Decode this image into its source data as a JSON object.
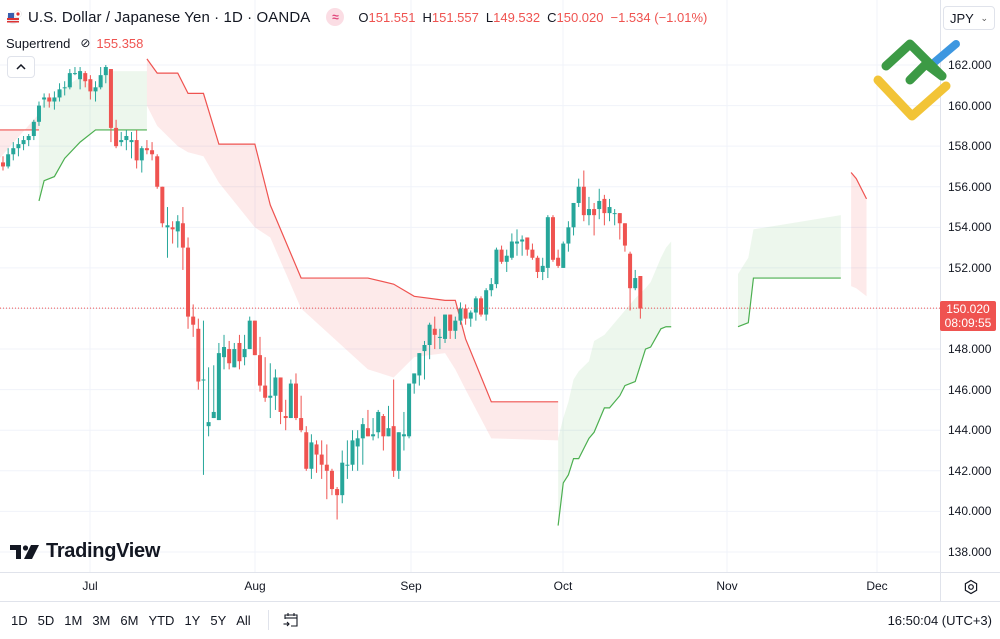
{
  "header": {
    "symbol_title": "U.S. Dollar / Japanese Yen · 1D · OANDA",
    "compare_icon": "approx-icon",
    "ohlc": {
      "open_key": "O",
      "open": "151.551",
      "high_key": "H",
      "high": "151.557",
      "low_key": "L",
      "low": "149.532",
      "close_key": "C",
      "close": "150.020",
      "change": "−1.534 (−1.01%)"
    }
  },
  "indicator": {
    "name": "Supertrend",
    "visibility_icon": "hidden-eye-icon",
    "value": "155.358"
  },
  "collapse_button": {
    "icon": "chevron-up-icon"
  },
  "currency_select": {
    "value": "JPY"
  },
  "price_axis": {
    "labels": [
      "162.000",
      "160.000",
      "158.000",
      "156.000",
      "154.000",
      "152.000",
      "148.000",
      "146.000",
      "144.000",
      "142.000",
      "140.000",
      "138.000"
    ],
    "last_price": "150.020",
    "countdown": "08:09:55"
  },
  "time_axis": {
    "labels": [
      "Jul",
      "Aug",
      "Sep",
      "Oct",
      "Nov",
      "Dec"
    ]
  },
  "watermark": {
    "text": "TradingView"
  },
  "bottom_bar": {
    "ranges": [
      "1D",
      "5D",
      "1M",
      "3M",
      "6M",
      "YTD",
      "1Y",
      "5Y",
      "All"
    ],
    "clock": "16:50:04 (UTC+3)"
  },
  "colors": {
    "up": "#26a69a",
    "down": "#ef5350",
    "supertrend_up": "#4caf50",
    "supertrend_down": "#ef5350",
    "fill_up": "rgba(76,175,80,0.10)",
    "fill_down": "rgba(239,83,80,0.12)",
    "grid": "#f0f3fa"
  },
  "chart_data": {
    "type": "candlestick",
    "title": "U.S. Dollar / Japanese Yen · 1D · OANDA",
    "xlabel": "",
    "ylabel": "JPY",
    "ylim": [
      137.5,
      163
    ],
    "grid": true,
    "x_ticks": [
      "Jul",
      "Aug",
      "Sep",
      "Oct",
      "Nov",
      "Dec"
    ],
    "y_ticks": [
      138,
      140,
      142,
      144,
      146,
      148,
      150,
      152,
      154,
      156,
      158,
      160,
      162
    ],
    "last": {
      "open": 151.551,
      "high": 151.557,
      "low": 149.532,
      "close": 150.02,
      "change": -1.534,
      "change_pct": -1.01
    },
    "indicator": {
      "name": "Supertrend",
      "value": 155.358
    },
    "candles": [
      [
        157.2,
        157.5,
        156.8,
        157.0
      ],
      [
        157.0,
        157.9,
        156.9,
        157.6
      ],
      [
        157.6,
        158.2,
        157.3,
        157.9
      ],
      [
        157.9,
        158.4,
        157.5,
        158.1
      ],
      [
        158.1,
        158.5,
        157.8,
        158.3
      ],
      [
        158.3,
        158.6,
        158.0,
        158.5
      ],
      [
        158.5,
        159.3,
        158.3,
        159.2
      ],
      [
        159.2,
        160.2,
        159.0,
        160.0
      ],
      [
        160.3,
        160.6,
        159.9,
        160.4
      ],
      [
        160.4,
        160.6,
        159.9,
        160.2
      ],
      [
        160.2,
        160.7,
        159.8,
        160.4
      ],
      [
        160.4,
        161.1,
        160.2,
        160.8
      ],
      [
        160.9,
        161.2,
        160.5,
        160.9
      ],
      [
        160.9,
        161.8,
        160.8,
        161.6
      ],
      [
        161.6,
        161.9,
        161.5,
        161.6
      ],
      [
        161.3,
        161.9,
        160.8,
        161.7
      ],
      [
        161.6,
        161.7,
        160.9,
        161.2
      ],
      [
        161.3,
        161.5,
        160.3,
        160.7
      ],
      [
        160.7,
        161.2,
        160.2,
        160.9
      ],
      [
        160.9,
        161.9,
        160.8,
        161.5
      ],
      [
        161.5,
        162.0,
        161.1,
        161.9
      ],
      [
        161.8,
        161.8,
        158.2,
        158.9
      ],
      [
        158.9,
        159.3,
        157.9,
        158.0
      ],
      [
        158.2,
        158.7,
        158.0,
        158.3
      ],
      [
        158.3,
        158.8,
        157.8,
        158.5
      ],
      [
        158.2,
        158.7,
        157.4,
        158.3
      ],
      [
        158.3,
        158.8,
        156.9,
        157.3
      ],
      [
        157.3,
        158.0,
        156.7,
        157.9
      ],
      [
        157.9,
        158.3,
        157.6,
        157.8
      ],
      [
        157.8,
        158.2,
        157.3,
        157.6
      ],
      [
        157.5,
        157.6,
        155.9,
        156.0
      ],
      [
        156.0,
        156.0,
        154.0,
        154.2
      ],
      [
        154.0,
        155.0,
        152.5,
        154.1
      ],
      [
        154.0,
        154.3,
        153.2,
        153.9
      ],
      [
        153.8,
        154.6,
        153.0,
        154.3
      ],
      [
        154.2,
        155.0,
        151.9,
        153.0
      ],
      [
        153.0,
        153.5,
        149.0,
        149.6
      ],
      [
        149.6,
        150.2,
        148.6,
        149.2
      ],
      [
        149.0,
        149.5,
        146.0,
        146.4
      ],
      [
        146.5,
        149.4,
        141.8,
        146.5
      ],
      [
        144.2,
        147.1,
        143.7,
        144.4
      ],
      [
        144.6,
        147.2,
        144.8,
        144.9
      ],
      [
        144.5,
        148.3,
        145.8,
        147.8
      ],
      [
        147.6,
        148.7,
        147.0,
        148.1
      ],
      [
        148.0,
        148.4,
        147.0,
        147.3
      ],
      [
        147.1,
        148.3,
        147.2,
        148.0
      ],
      [
        148.3,
        148.7,
        147.0,
        147.4
      ],
      [
        147.6,
        148.7,
        147.2,
        148.0
      ],
      [
        148.0,
        149.6,
        148.4,
        149.4
      ],
      [
        149.4,
        149.4,
        147.8,
        147.7
      ],
      [
        147.7,
        148.6,
        145.9,
        146.2
      ],
      [
        146.2,
        147.6,
        145.4,
        145.6
      ],
      [
        145.6,
        147.3,
        144.6,
        145.7
      ],
      [
        145.7,
        147.0,
        145.0,
        146.6
      ],
      [
        146.6,
        146.5,
        144.3,
        144.9
      ],
      [
        144.7,
        145.5,
        144.0,
        144.6
      ],
      [
        144.6,
        146.5,
        145.0,
        146.3
      ],
      [
        146.3,
        146.8,
        144.5,
        144.6
      ],
      [
        144.6,
        145.7,
        143.9,
        144.0
      ],
      [
        143.9,
        144.2,
        142.0,
        142.1
      ],
      [
        142.1,
        143.8,
        141.6,
        143.4
      ],
      [
        143.3,
        143.5,
        141.9,
        142.8
      ],
      [
        142.8,
        143.5,
        141.6,
        142.3
      ],
      [
        142.3,
        143.3,
        140.6,
        142.0
      ],
      [
        142.0,
        142.1,
        140.8,
        141.1
      ],
      [
        141.1,
        141.2,
        139.6,
        140.8
      ],
      [
        140.8,
        143.0,
        140.4,
        142.4
      ],
      [
        142.3,
        143.5,
        141.6,
        142.3
      ],
      [
        142.3,
        144.0,
        142.0,
        143.5
      ],
      [
        143.2,
        144.0,
        142.0,
        143.6
      ],
      [
        143.6,
        144.6,
        142.3,
        144.3
      ],
      [
        144.1,
        145.0,
        143.7,
        143.7
      ],
      [
        143.7,
        144.6,
        143.5,
        143.8
      ],
      [
        143.9,
        145.0,
        143.6,
        144.9
      ],
      [
        144.7,
        144.8,
        143.0,
        143.7
      ],
      [
        143.7,
        145.2,
        144.0,
        144.1
      ],
      [
        144.2,
        146.5,
        141.7,
        142.0
      ],
      [
        142.0,
        143.5,
        141.6,
        143.9
      ],
      [
        143.7,
        144.9,
        143.0,
        143.8
      ],
      [
        143.7,
        145.7,
        143.6,
        146.3
      ],
      [
        146.3,
        146.6,
        145.8,
        146.8
      ],
      [
        146.7,
        147.5,
        146.2,
        147.8
      ],
      [
        147.9,
        148.4,
        146.5,
        148.2
      ],
      [
        148.2,
        149.3,
        147.5,
        149.2
      ],
      [
        149.0,
        149.6,
        148.0,
        148.7
      ],
      [
        148.6,
        149.0,
        148.0,
        148.6
      ],
      [
        148.5,
        149.7,
        148.3,
        149.7
      ],
      [
        149.7,
        149.6,
        148.5,
        148.9
      ],
      [
        148.9,
        149.6,
        148.5,
        149.4
      ],
      [
        149.4,
        150.3,
        149.2,
        150.0
      ],
      [
        150.0,
        150.2,
        149.2,
        149.5
      ],
      [
        149.5,
        149.9,
        149.1,
        149.8
      ],
      [
        149.8,
        150.6,
        149.4,
        150.5
      ],
      [
        150.5,
        150.6,
        149.6,
        149.7
      ],
      [
        149.7,
        151.0,
        149.4,
        150.9
      ],
      [
        150.9,
        151.5,
        150.6,
        151.2
      ],
      [
        151.2,
        153.0,
        151.0,
        152.9
      ],
      [
        152.9,
        153.1,
        152.2,
        152.3
      ],
      [
        152.3,
        152.9,
        151.8,
        152.6
      ],
      [
        152.5,
        153.7,
        152.4,
        153.3
      ],
      [
        153.2,
        153.9,
        152.6,
        153.3
      ],
      [
        153.3,
        153.6,
        152.6,
        153.4
      ],
      [
        153.5,
        153.5,
        152.6,
        152.9
      ],
      [
        152.9,
        153.2,
        152.4,
        152.5
      ],
      [
        152.5,
        152.6,
        151.5,
        151.8
      ],
      [
        151.8,
        152.5,
        151.4,
        152.1
      ],
      [
        152.0,
        154.6,
        151.5,
        154.5
      ],
      [
        154.5,
        154.6,
        152.3,
        152.4
      ],
      [
        152.5,
        152.9,
        152.0,
        152.1
      ],
      [
        152.0,
        153.3,
        152.0,
        153.2
      ],
      [
        153.2,
        154.3,
        152.8,
        154.0
      ],
      [
        154.0,
        155.0,
        153.6,
        155.2
      ],
      [
        155.2,
        156.4,
        155.0,
        156.0
      ],
      [
        156.0,
        156.8,
        154.3,
        154.6
      ],
      [
        154.6,
        155.5,
        154.1,
        154.9
      ],
      [
        154.9,
        155.2,
        153.6,
        154.6
      ],
      [
        154.9,
        155.9,
        154.4,
        155.3
      ],
      [
        155.4,
        155.6,
        154.1,
        154.7
      ],
      [
        154.7,
        155.4,
        154.3,
        155.0
      ],
      [
        154.7,
        154.9,
        154.1,
        154.7
      ],
      [
        154.7,
        154.6,
        153.4,
        154.2
      ],
      [
        154.2,
        154.2,
        152.8,
        153.1
      ],
      [
        152.7,
        152.8,
        149.9,
        151.0
      ],
      [
        151.0,
        151.9,
        150.9,
        151.5
      ],
      [
        151.6,
        151.6,
        149.5,
        150.0
      ]
    ],
    "supertrend": {
      "segments": [
        {
          "direction": "down",
          "x_range": [
            "Jun",
            "Jul"
          ],
          "level": 158.8
        },
        {
          "direction": "up",
          "x_range": [
            "Jul",
            "mid-Jul"
          ],
          "from": 155.3,
          "to": 158.8
        },
        {
          "direction": "down",
          "x_range": [
            "mid-Jul",
            "Oct"
          ],
          "from": 162.3,
          "to": 145.4
        },
        {
          "direction": "up",
          "x_range": [
            "Oct",
            "late-Nov"
          ],
          "from": 139.3,
          "to": 151.5
        },
        {
          "direction": "down",
          "x_range": [
            "late-Nov",
            "Dec"
          ],
          "from": 156.7,
          "to": 155.4
        }
      ]
    }
  }
}
